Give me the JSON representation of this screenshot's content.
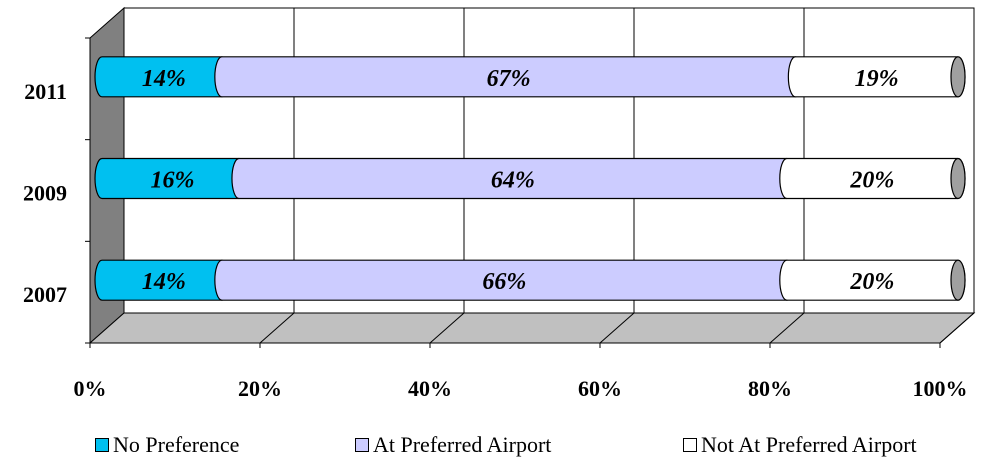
{
  "chart_data": {
    "type": "bar",
    "orientation": "horizontal",
    "stacked": true,
    "percent_stacked": true,
    "three_d": true,
    "categories": [
      "2011",
      "2009",
      "2007"
    ],
    "series": [
      {
        "name": "No Preference",
        "values": [
          14,
          16,
          14
        ],
        "labels": [
          "14%",
          "16%",
          "14%"
        ],
        "color": "#00c0f0"
      },
      {
        "name": "At Preferred Airport",
        "values": [
          67,
          64,
          66
        ],
        "labels": [
          "67%",
          "64%",
          "66%"
        ],
        "color": "#ccccff"
      },
      {
        "name": "Not At Preferred Airport",
        "values": [
          19,
          20,
          20
        ],
        "labels": [
          "19%",
          "20%",
          "20%"
        ],
        "color": "#ffffff"
      }
    ],
    "x_ticks": [
      "0%",
      "20%",
      "40%",
      "60%",
      "80%",
      "100%"
    ],
    "xlim": [
      0,
      100
    ],
    "grid": true,
    "legend_position": "bottom",
    "wall_color": "#ffffff",
    "side_wall_color": "#808080",
    "floor_color": "#c0c0c0"
  }
}
